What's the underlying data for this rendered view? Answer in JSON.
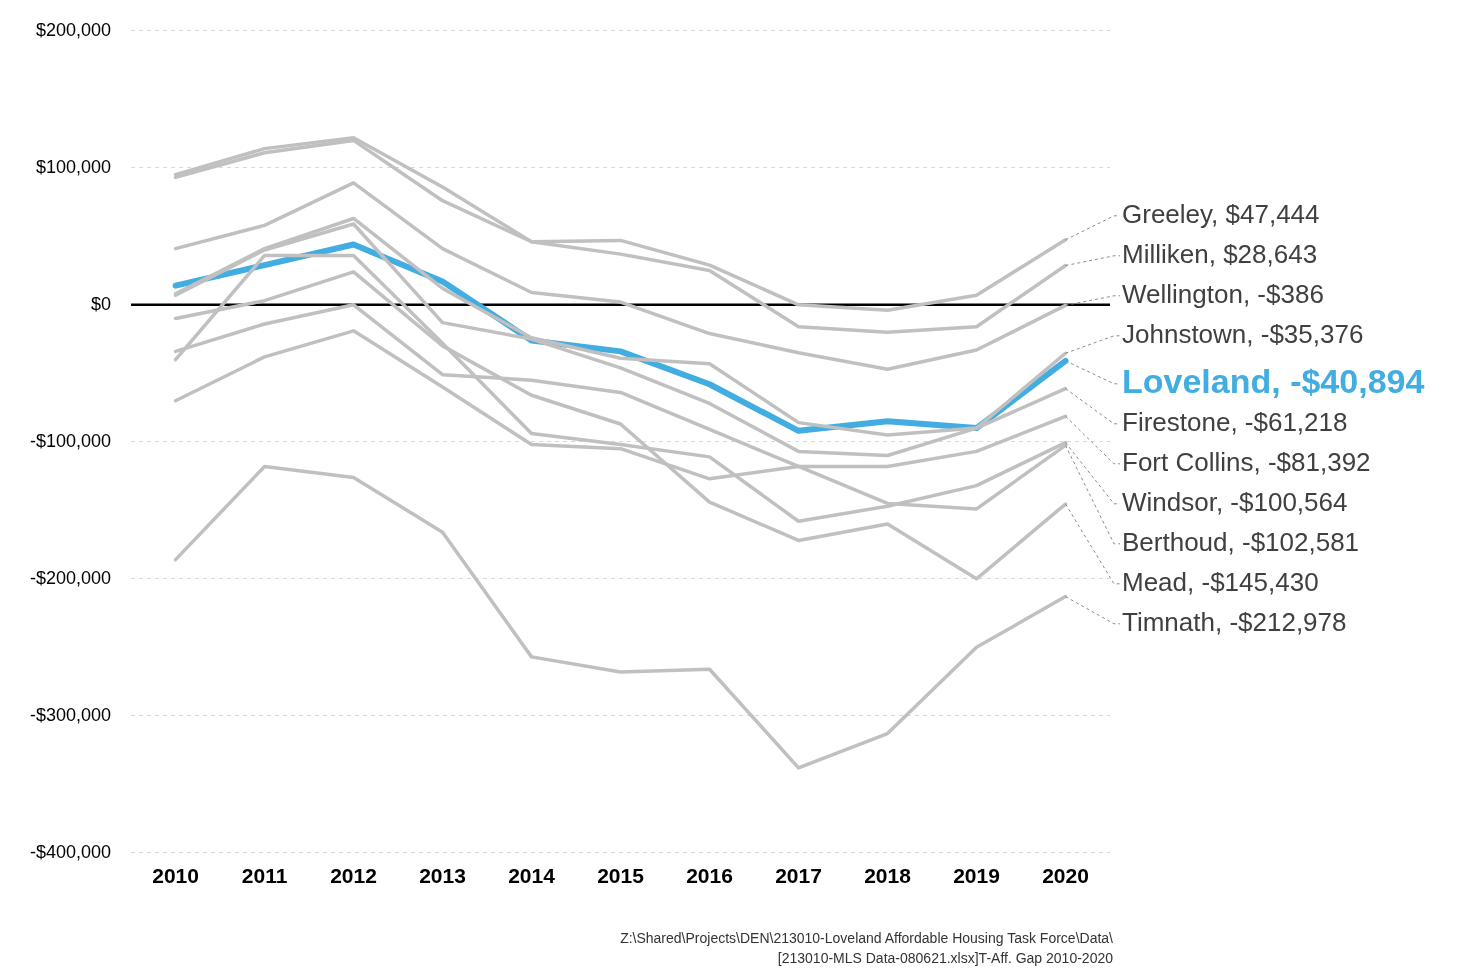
{
  "chart_data": {
    "type": "line",
    "categories": [
      "2010",
      "2011",
      "2012",
      "2013",
      "2014",
      "2015",
      "2016",
      "2017",
      "2018",
      "2019",
      "2020"
    ],
    "series": [
      {
        "color": "#c0c0c0",
        "values": [
          95000,
          114000,
          122000,
          86000,
          46000,
          47000,
          29000,
          0,
          -4000,
          7000,
          47444
        ],
        "value_labels": [
          null,
          null,
          null,
          null,
          null,
          null,
          null,
          null,
          null,
          null,
          "Greeley, $47,444"
        ]
      },
      {
        "color": "#c0c0c0",
        "values": [
          93000,
          111000,
          120000,
          76000,
          46000,
          37000,
          25000,
          -16000,
          -20000,
          -16000,
          28643
        ],
        "value_labels": [
          null,
          null,
          null,
          null,
          null,
          null,
          null,
          null,
          null,
          null,
          "Milliken, $28,643"
        ]
      },
      {
        "color": "#c0c0c0",
        "values": [
          41000,
          58000,
          89000,
          41000,
          9000,
          2000,
          -21000,
          -35000,
          -47000,
          -33000,
          -386
        ],
        "value_labels": [
          null,
          null,
          null,
          null,
          null,
          null,
          null,
          null,
          null,
          null,
          "Wellington, -$386"
        ]
      },
      {
        "color": "#c0c0c0",
        "values": [
          8000,
          41000,
          63000,
          12000,
          -24000,
          -39000,
          -43000,
          -86000,
          -95000,
          -90000,
          -35376
        ],
        "value_labels": [
          null,
          null,
          null,
          null,
          null,
          null,
          null,
          null,
          null,
          null,
          "Johnstown, -$35,376"
        ]
      },
      {
        "color": "#41ade0",
        "values": [
          14000,
          29000,
          44000,
          17000,
          -26000,
          -34000,
          -58000,
          -92000,
          -85000,
          -90000,
          -40894
        ],
        "value_labels": [
          null,
          null,
          null,
          null,
          null,
          null,
          null,
          null,
          null,
          null,
          "Loveland, -$40,894"
        ]
      },
      {
        "color": "#c0c0c0",
        "values": [
          7000,
          40000,
          59000,
          -13000,
          -25000,
          -46000,
          -72000,
          -107000,
          -110000,
          -90000,
          -61218
        ],
        "value_labels": [
          null,
          null,
          null,
          null,
          null,
          null,
          null,
          null,
          null,
          null,
          "Firestone, -$61,218"
        ]
      },
      {
        "color": "#c0c0c0",
        "values": [
          -70000,
          -38000,
          -19000,
          -60000,
          -102000,
          -105000,
          -127000,
          -118000,
          -118000,
          -107000,
          -81392
        ],
        "value_labels": [
          null,
          null,
          null,
          null,
          null,
          null,
          null,
          null,
          null,
          null,
          "Fort Collins, -$81,392"
        ]
      },
      {
        "color": "#c0c0c0",
        "values": [
          -40000,
          36000,
          36000,
          -28000,
          -94000,
          -102000,
          -111000,
          -158000,
          -147000,
          -132000,
          -100564
        ],
        "value_labels": [
          null,
          null,
          null,
          null,
          null,
          null,
          null,
          null,
          null,
          null,
          "Windsor, -$100,564"
        ]
      },
      {
        "color": "#c0c0c0",
        "values": [
          -34000,
          -14000,
          0,
          -51000,
          -55000,
          -64000,
          -91000,
          -118000,
          -145000,
          -149000,
          -102581
        ],
        "value_labels": [
          null,
          null,
          null,
          null,
          null,
          null,
          null,
          null,
          null,
          null,
          "Berthoud, -$102,581"
        ]
      },
      {
        "color": "#c0c0c0",
        "values": [
          -10000,
          3000,
          24000,
          -30000,
          -66000,
          -87000,
          -144000,
          -172000,
          -160000,
          -200000,
          -145430
        ],
        "value_labels": [
          null,
          null,
          null,
          null,
          null,
          null,
          null,
          null,
          null,
          null,
          "Mead, -$145,430"
        ]
      },
      {
        "color": "#c0c0c0",
        "values": [
          -186000,
          -118000,
          -126000,
          -166000,
          -257000,
          -268000,
          -266000,
          -338000,
          -313000,
          -250000,
          -212978
        ],
        "value_labels": [
          null,
          null,
          null,
          null,
          null,
          null,
          null,
          null,
          null,
          null,
          "Timnath, -$212,978"
        ]
      }
    ],
    "ylim": [
      -400000,
      200000
    ],
    "yticks": [
      {
        "value": 200000,
        "label": "$200,000"
      },
      {
        "value": 100000,
        "label": "$100,000"
      },
      {
        "value": 0,
        "label": "$0"
      },
      {
        "value": -100000,
        "label": "-$100,000"
      },
      {
        "value": -200000,
        "label": "-$200,000"
      },
      {
        "value": -300000,
        "label": "-$300,000"
      },
      {
        "value": -400000,
        "label": "-$400,000"
      }
    ],
    "grid": "y",
    "legend": false,
    "marker": "none",
    "line_style": "solid",
    "ref_lines": [
      {
        "axis": "y",
        "value": 0,
        "color": "#000000"
      }
    ],
    "annotations": [
      "Z:\\Shared\\Projects\\DEN\\213010-Loveland Affordable Housing Task Force\\Data\\[213010-MLS Data-080621.xlsx]T-Aff. Gap 2010-2020"
    ]
  }
}
